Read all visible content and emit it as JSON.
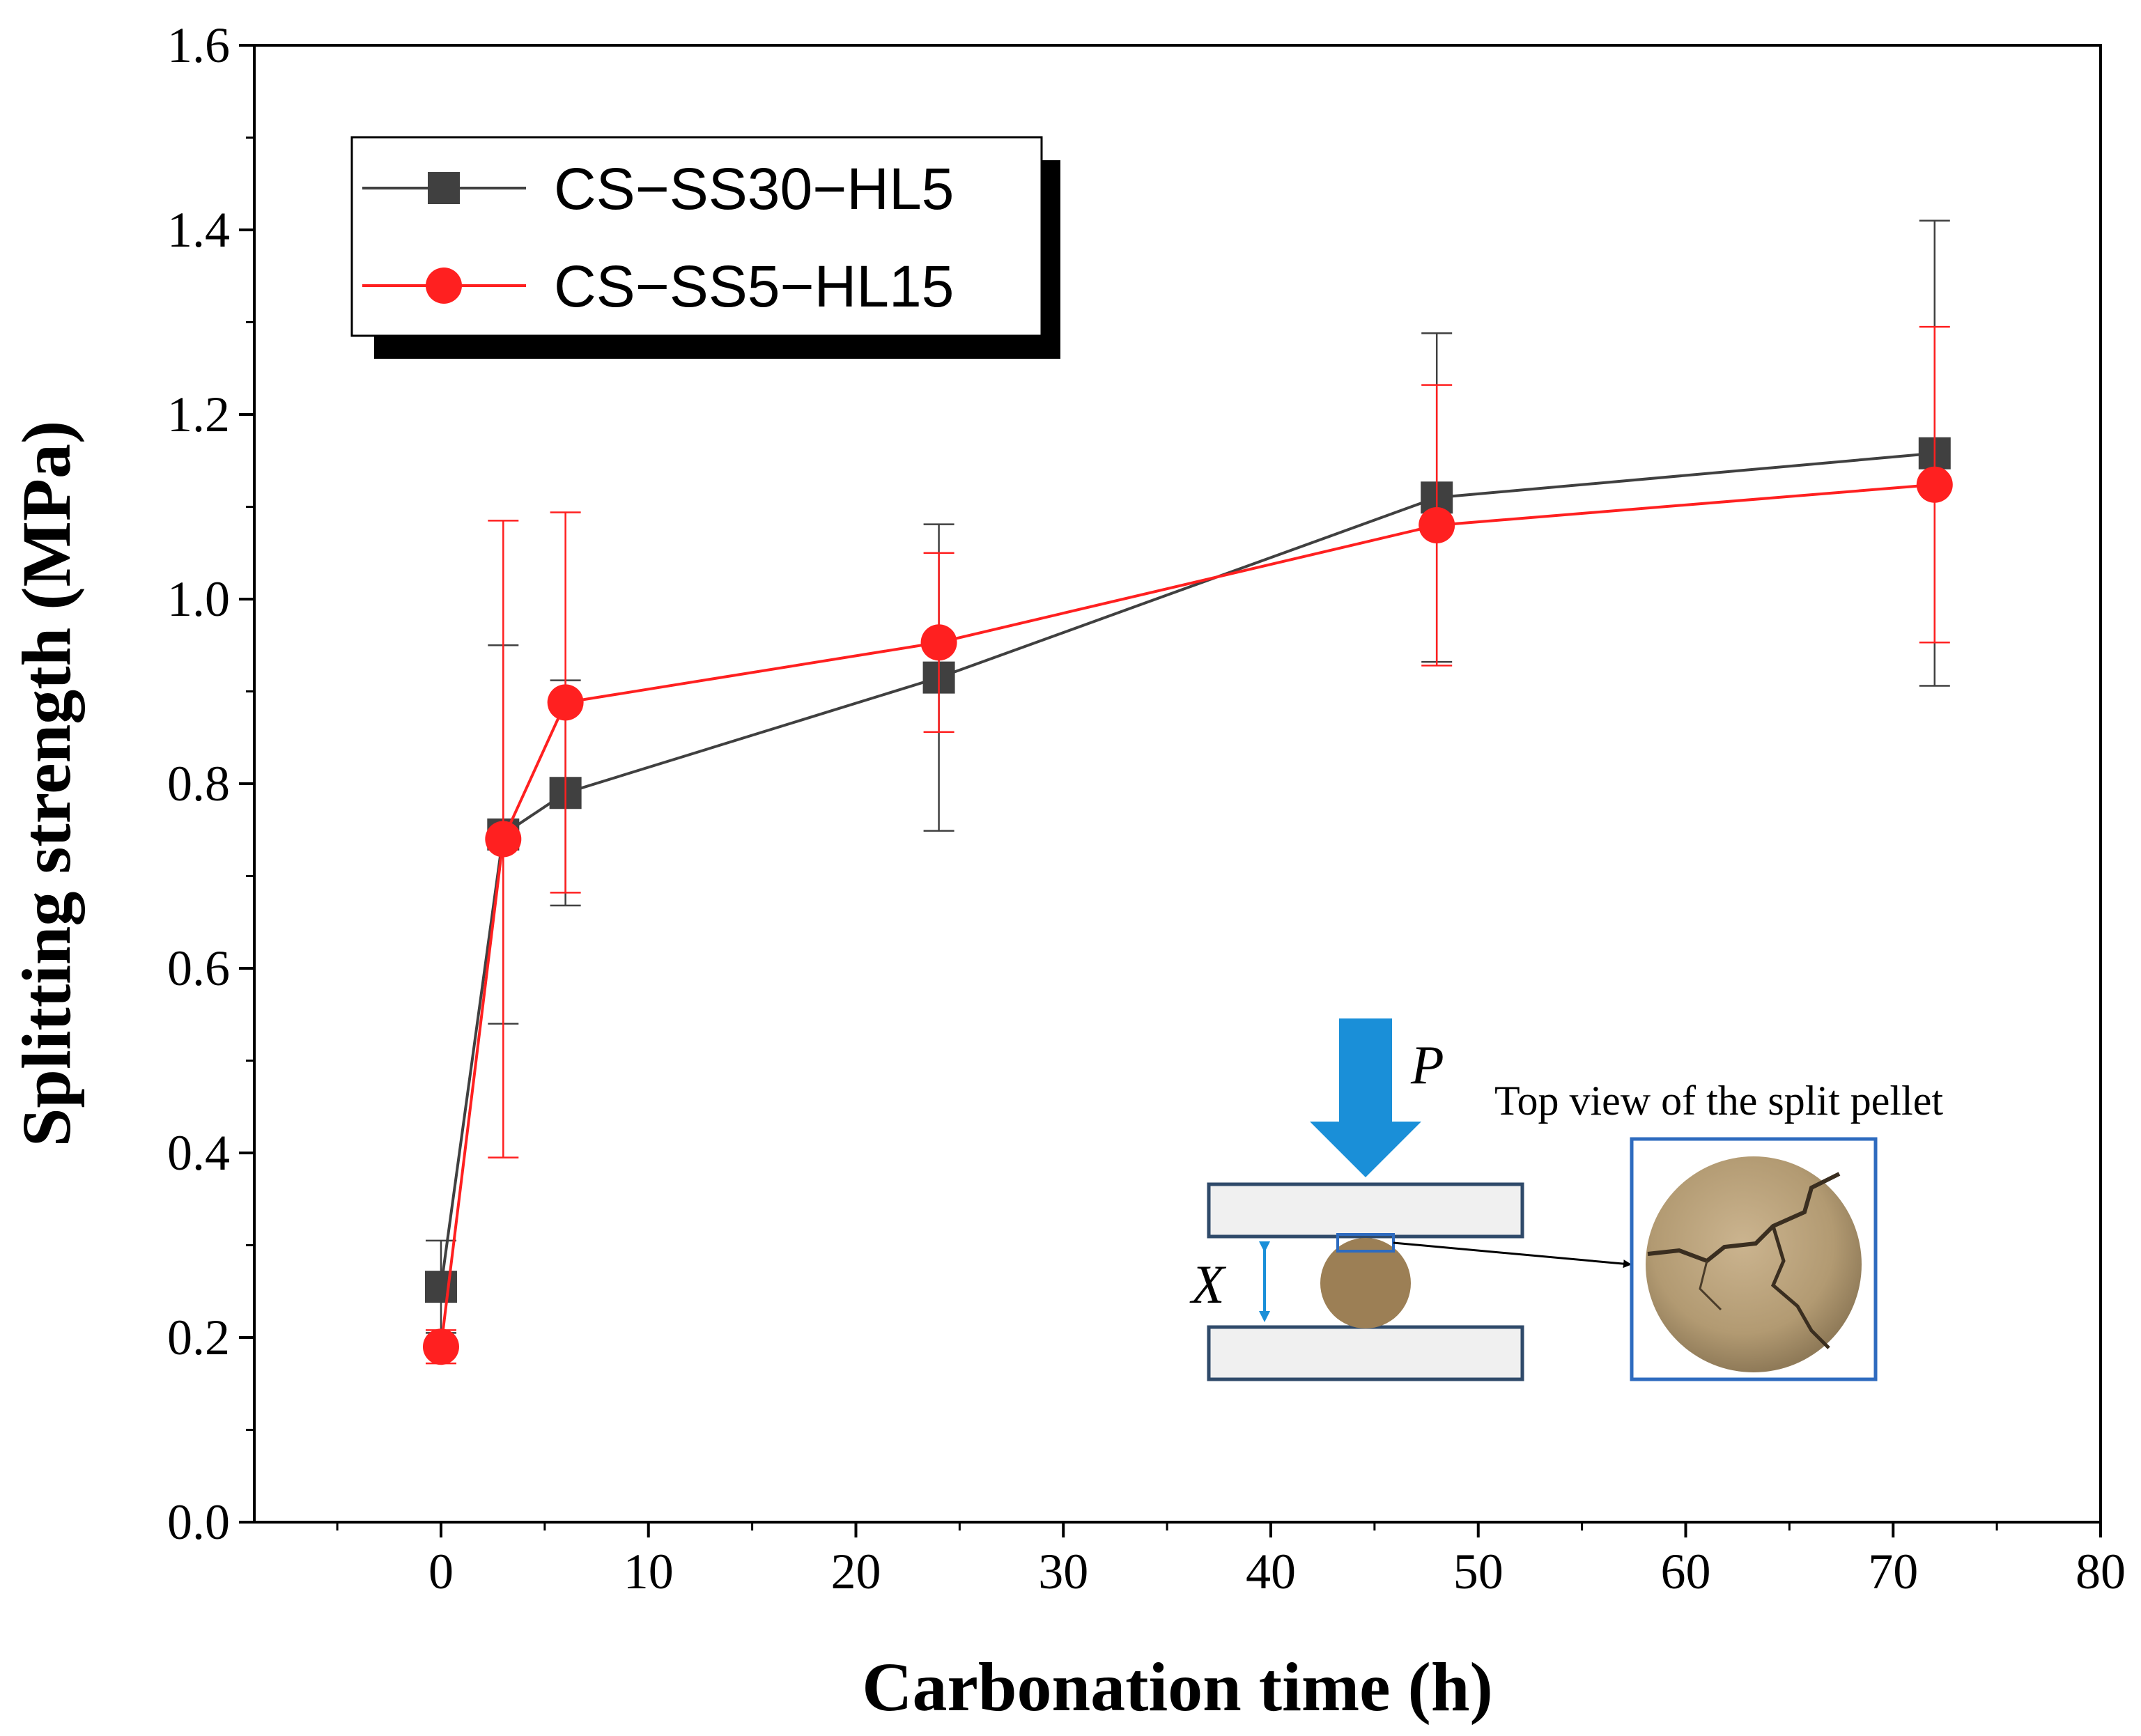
{
  "chart_data": {
    "type": "line",
    "title": "",
    "xlabel": "Carbonation time (h)",
    "ylabel": "Splitting strength (MPa)",
    "xlim": [
      -9,
      80
    ],
    "ylim": [
      0.0,
      1.6
    ],
    "x_ticks": [
      0,
      10,
      20,
      30,
      40,
      50,
      60,
      70,
      80
    ],
    "x_tick_labels": [
      "0",
      "10",
      "20",
      "30",
      "40",
      "50",
      "60",
      "70",
      "80"
    ],
    "y_ticks": [
      0.0,
      0.2,
      0.4,
      0.6,
      0.8,
      1.0,
      1.2,
      1.4,
      1.6
    ],
    "y_tick_labels": [
      "0.0",
      "0.2",
      "0.4",
      "0.6",
      "0.8",
      "1.0",
      "1.2",
      "1.4",
      "1.6"
    ],
    "grid": false,
    "legend_position": "top-left",
    "series": [
      {
        "name": "CS−SS30−HL5",
        "color": "#404040",
        "marker": "square",
        "x": [
          0,
          3,
          6,
          24,
          48,
          72
        ],
        "values": [
          0.255,
          0.745,
          0.79,
          0.915,
          1.11,
          1.158
        ],
        "error": [
          0.05,
          0.205,
          0.122,
          0.166,
          0.178,
          0.252
        ]
      },
      {
        "name": "CS−SS5−HL15",
        "color": "#ff2020",
        "marker": "circle",
        "x": [
          0,
          3,
          6,
          24,
          48,
          72
        ],
        "values": [
          0.19,
          0.74,
          0.888,
          0.953,
          1.08,
          1.124
        ],
        "error": [
          0.018,
          0.345,
          0.206,
          0.097,
          0.152,
          0.171
        ]
      }
    ]
  },
  "inset": {
    "force_label": "P",
    "gap_label": "X",
    "photo_caption": "Top view of the split pellet",
    "pellet_color": "#9c7f55",
    "arrow_color": "#1a8fd8",
    "frame_color": "#2f4a6a",
    "photo_frame_color": "#2e6bbf"
  }
}
